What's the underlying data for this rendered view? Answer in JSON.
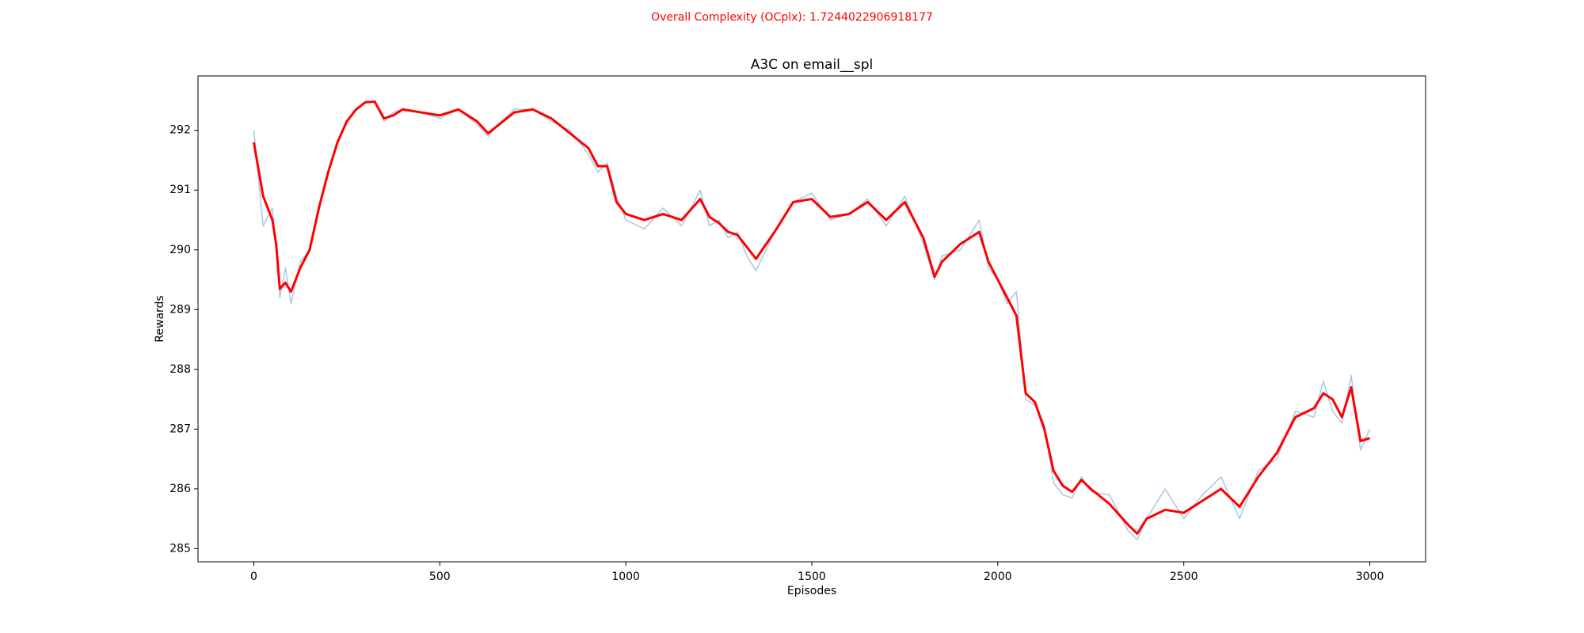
{
  "chart_data": {
    "type": "line",
    "suptitle": "Overall Complexity (OCplx): 1.7244022906918177",
    "title": "A3C on email__spl",
    "x_label": "Episodes",
    "y_label": "Rewards",
    "x": [
      0,
      25,
      50,
      60,
      70,
      85,
      100,
      125,
      150,
      175,
      200,
      225,
      250,
      275,
      300,
      325,
      350,
      375,
      400,
      450,
      500,
      550,
      600,
      630,
      650,
      700,
      750,
      800,
      850,
      900,
      925,
      950,
      975,
      1000,
      1050,
      1100,
      1150,
      1200,
      1225,
      1250,
      1275,
      1300,
      1325,
      1350,
      1400,
      1450,
      1500,
      1550,
      1600,
      1650,
      1700,
      1750,
      1800,
      1830,
      1850,
      1900,
      1950,
      1975,
      2000,
      2025,
      2050,
      2075,
      2100,
      2125,
      2150,
      2175,
      2200,
      2225,
      2250,
      2300,
      2350,
      2375,
      2400,
      2450,
      2500,
      2550,
      2600,
      2650,
      2700,
      2750,
      2800,
      2850,
      2875,
      2900,
      2925,
      2950,
      2975,
      3000
    ],
    "series": [
      {
        "color": "#a6c8e4",
        "width": 1.5,
        "values": [
          292.0,
          290.4,
          290.7,
          290.0,
          289.2,
          289.7,
          289.1,
          289.8,
          290.0,
          290.7,
          291.3,
          291.8,
          292.15,
          292.35,
          292.47,
          292.48,
          292.15,
          292.3,
          292.35,
          292.3,
          292.2,
          292.35,
          292.1,
          291.9,
          292.05,
          292.35,
          292.35,
          292.15,
          292.0,
          291.6,
          291.3,
          291.45,
          290.9,
          290.5,
          290.35,
          290.7,
          290.4,
          291.0,
          290.4,
          290.5,
          290.2,
          290.3,
          289.9,
          289.65,
          290.3,
          290.8,
          290.95,
          290.5,
          290.6,
          290.85,
          290.4,
          290.9,
          290.1,
          289.5,
          289.9,
          290.0,
          290.5,
          289.7,
          289.5,
          289.1,
          289.3,
          287.5,
          287.4,
          287.1,
          286.1,
          285.9,
          285.85,
          286.2,
          285.95,
          285.9,
          285.3,
          285.15,
          285.5,
          286.0,
          285.5,
          285.9,
          286.2,
          285.5,
          286.3,
          286.5,
          287.3,
          287.2,
          287.8,
          287.3,
          287.1,
          287.9,
          286.65,
          287.0
        ]
      },
      {
        "color": "#ff0000",
        "width": 3,
        "values": [
          291.8,
          290.9,
          290.5,
          290.1,
          289.35,
          289.45,
          289.3,
          289.7,
          290.0,
          290.7,
          291.3,
          291.8,
          292.15,
          292.35,
          292.47,
          292.48,
          292.2,
          292.25,
          292.35,
          292.3,
          292.25,
          292.35,
          292.15,
          291.95,
          292.05,
          292.3,
          292.35,
          292.2,
          291.95,
          291.7,
          291.4,
          291.4,
          290.8,
          290.6,
          290.5,
          290.6,
          290.5,
          290.85,
          290.55,
          290.45,
          290.3,
          290.25,
          290.05,
          289.85,
          290.3,
          290.8,
          290.85,
          290.55,
          290.6,
          290.8,
          290.5,
          290.8,
          290.2,
          289.55,
          289.8,
          290.1,
          290.3,
          289.8,
          289.5,
          289.2,
          288.9,
          287.6,
          287.45,
          287.0,
          286.3,
          286.05,
          285.95,
          286.15,
          286.0,
          285.75,
          285.4,
          285.25,
          285.5,
          285.65,
          285.6,
          285.8,
          286.0,
          285.7,
          286.2,
          286.6,
          287.2,
          287.35,
          287.6,
          287.5,
          287.2,
          287.7,
          286.8,
          286.85
        ]
      }
    ],
    "xlim": [
      -150,
      3150
    ],
    "ylim": [
      284.78,
      292.91
    ],
    "xticks": [
      0,
      500,
      1000,
      1500,
      2000,
      2500,
      3000
    ],
    "yticks": [
      285,
      286,
      287,
      288,
      289,
      290,
      291,
      292
    ],
    "suptitle_color": "#ff0000"
  }
}
